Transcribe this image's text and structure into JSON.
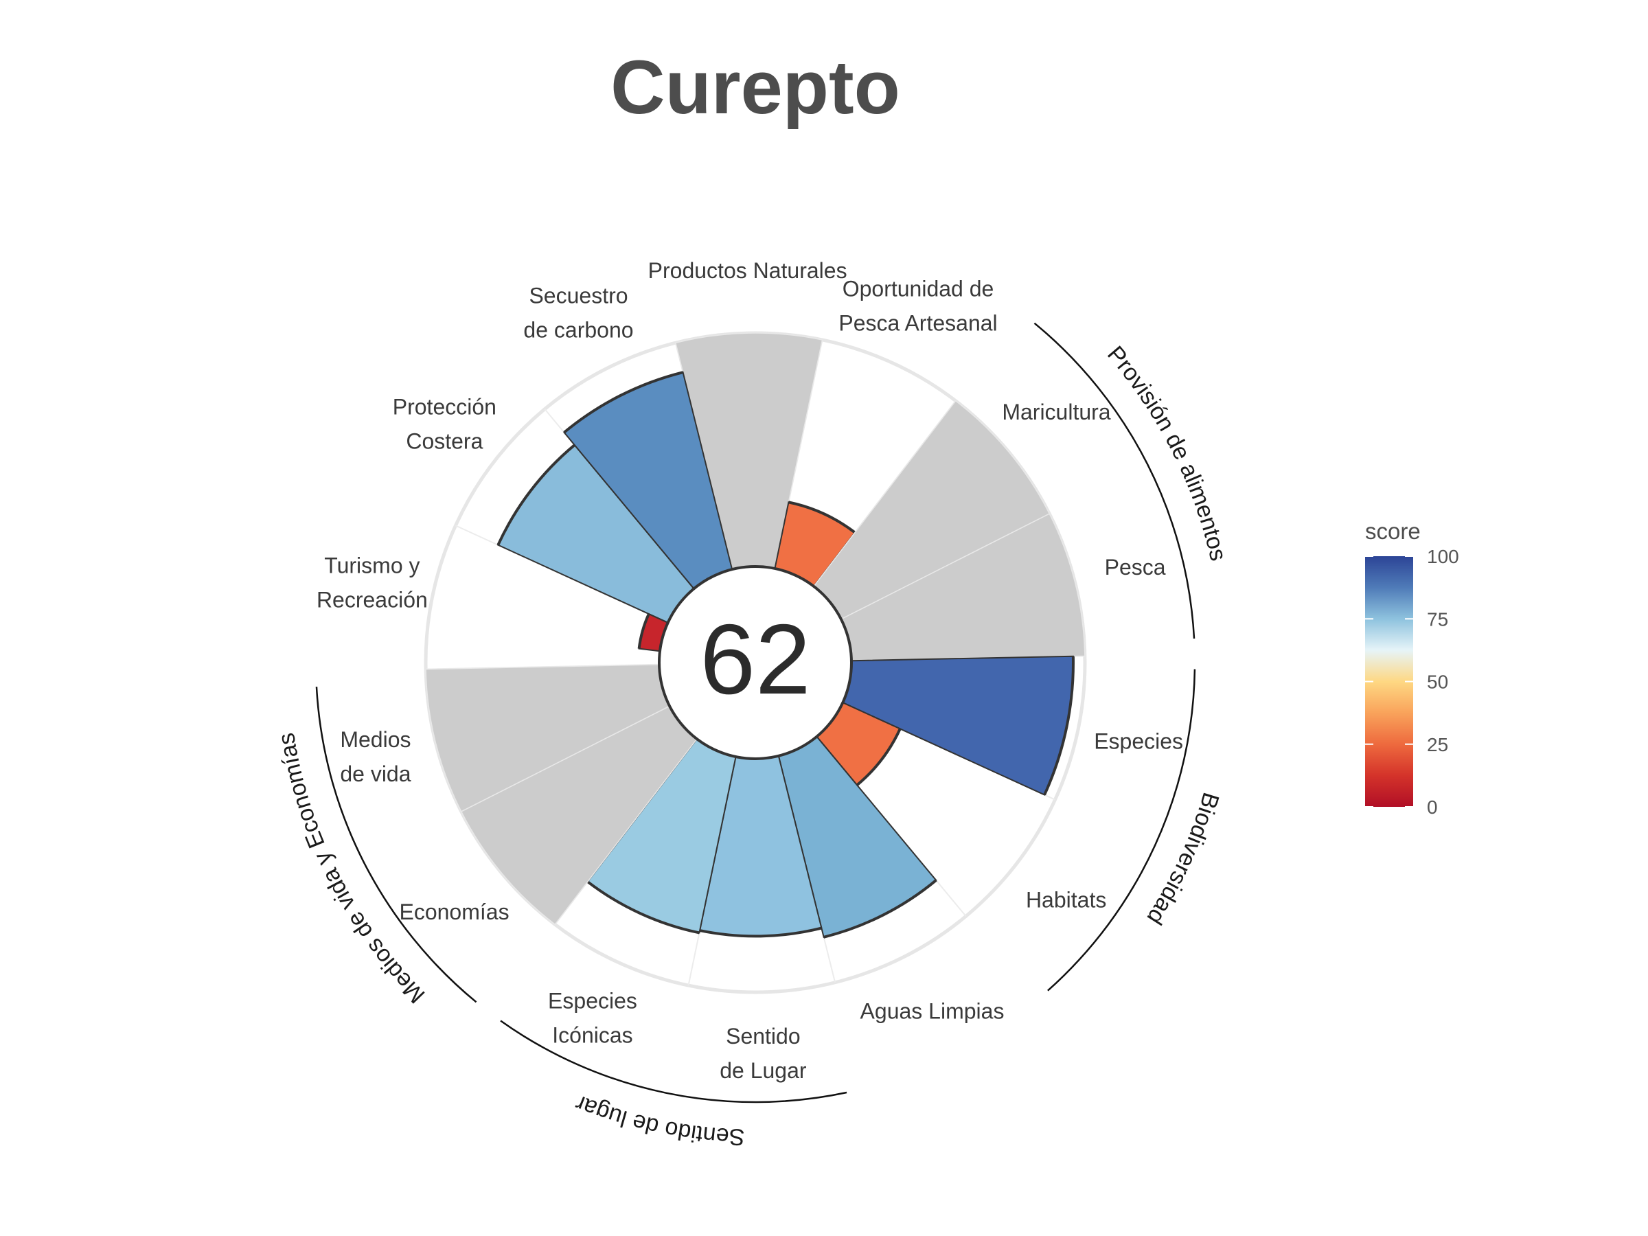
{
  "chart_data": {
    "type": "polar-bar",
    "title": "Curepto",
    "center_score": "62",
    "max": 100,
    "goals": [
      {
        "label": [
          "Productos Naturales"
        ],
        "value": 100,
        "color": "#cccccc",
        "outline": false,
        "group": null
      },
      {
        "label": [
          "Oportunidad de",
          "Pesca Artesanal"
        ],
        "value": 29,
        "color": "#f07044",
        "outline": true,
        "group": null
      },
      {
        "label": [
          "Maricultura"
        ],
        "value": 100,
        "color": "#cccccc",
        "outline": false,
        "group": "Provisión de alimentos"
      },
      {
        "label": [
          "Pesca"
        ],
        "value": 100,
        "color": "#cccccc",
        "outline": false,
        "group": "Provisión de alimentos"
      },
      {
        "label": [
          "Especies"
        ],
        "value": 95,
        "color": "#4266ad",
        "outline": true,
        "group": "Biodiversidad"
      },
      {
        "label": [
          "Habitats"
        ],
        "value": 27,
        "color": "#f07044",
        "outline": true,
        "group": "Biodiversidad"
      },
      {
        "label": [
          "Aguas Limpias"
        ],
        "value": 80,
        "color": "#7ab2d4",
        "outline": true,
        "group": null
      },
      {
        "label": [
          "Sentido",
          "de Lugar"
        ],
        "value": 76,
        "color": "#8fc2e0",
        "outline": true,
        "group": "Sentido de lugar"
      },
      {
        "label": [
          "Especies",
          "Icónicas"
        ],
        "value": 77,
        "color": "#9acbe2",
        "outline": true,
        "group": "Sentido de lugar"
      },
      {
        "label": [
          "Economías"
        ],
        "value": 100,
        "color": "#cccccc",
        "outline": false,
        "group": "Medios de vida y Economías"
      },
      {
        "label": [
          "Medios",
          "de vida"
        ],
        "value": 100,
        "color": "#cccccc",
        "outline": false,
        "group": "Medios de vida y Economías"
      },
      {
        "label": [
          "Turismo y",
          "Recreación"
        ],
        "value": 0,
        "color": "#ffffff",
        "outline": false,
        "group": null
      },
      {
        "label": [
          "Protección",
          "Costera"
        ],
        "value": 80,
        "color": "#89bcdb",
        "outline": true,
        "group": null
      },
      {
        "label": [
          "Secuestro",
          "de carbono"
        ],
        "value": 87,
        "color": "#5a8dc0",
        "outline": true,
        "group": null
      }
    ],
    "small_bar": {
      "value": 9,
      "color": "#c7252c",
      "outline": true
    },
    "groups": [
      "Provisión de alimentos",
      "Biodiversidad",
      "Sentido de lugar",
      "Medios de vida y Economías"
    ],
    "legend": {
      "title": "score",
      "ticks": [
        "100",
        "75",
        "50",
        "25",
        "0"
      ],
      "colors": [
        "#2c4496",
        "#4f7bb8",
        "#8ec2de",
        "#e6f4f8",
        "#fed883",
        "#f9a35b",
        "#ee6a3e",
        "#d4332a",
        "#b10f26"
      ]
    }
  }
}
